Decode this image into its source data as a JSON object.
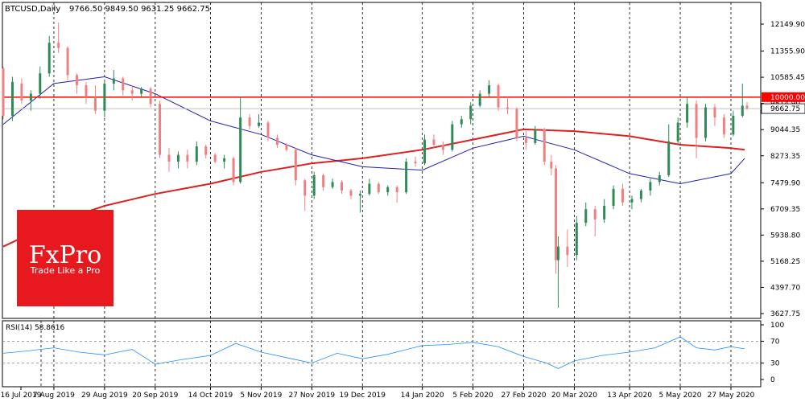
{
  "header": {
    "symbol_label": "BTCUSD,Daily",
    "ohlc_label": "9766.50 9849.50 9631.25 9662.75"
  },
  "logo": {
    "brand": "FxPro",
    "tagline": "Trade Like a Pro"
  },
  "rsi_label": "RSI(14) 58.8616",
  "colors": {
    "bull": "#2e8b57",
    "bear": "#f08080",
    "ma_long": "#e02020",
    "ma_short": "#2020b0",
    "resistance": "#ff0000",
    "rsi": "#1e90ff",
    "logo_bg": "#e8191e"
  },
  "chart_data": {
    "type": "candlestick",
    "title": "BTCUSD,Daily",
    "price_axis": {
      "ticks": [
        3627.75,
        4397.7,
        5168.25,
        5938.8,
        6709.35,
        7479.9,
        8273.35,
        9044.35,
        9814.9,
        10585.45,
        11355.9,
        12149.9
      ],
      "range": [
        3460,
        12600
      ],
      "tick_labels": [
        "3627.75",
        "4397.70",
        "5168.25",
        "5938.80",
        "6709.35",
        "7479.90",
        "8273.35",
        "9044.35",
        "9814.90",
        "10585.45",
        "11355.90",
        "12149.90"
      ]
    },
    "date_axis": {
      "labels": [
        "16 Jul 2019",
        "7 Aug 2019",
        "29 Aug 2019",
        "20 Sep 2019",
        "14 Oct 2019",
        "5 Nov 2019",
        "27 Nov 2019",
        "19 Dec 2019",
        "14 Jan 2020",
        "5 Feb 2020",
        "27 Feb 2020",
        "20 Mar 2020",
        "13 Apr 2020",
        "5 May 2020",
        "27 May 2020"
      ],
      "grid_at_labels": [
        "7 Aug 2019",
        "29 Aug 2019",
        "20 Sep 2019",
        "14 Oct 2019",
        "5 Nov 2019",
        "27 Nov 2019",
        "19 Dec 2019",
        "14 Jan 2020",
        "5 Feb 2020",
        "27 Feb 2020",
        "20 Mar 2020",
        "13 Apr 2020",
        "5 May 2020",
        "27 May 2020"
      ]
    },
    "resistance": {
      "value": 10000.0,
      "label": "10000.00"
    },
    "last_price": {
      "value": 9662.75,
      "label": "9662.75"
    },
    "ma_long_points": [
      [
        "2019-07-16",
        5600
      ],
      [
        "2019-08-07",
        6300
      ],
      [
        "2019-08-29",
        6800
      ],
      [
        "2019-09-20",
        7150
      ],
      [
        "2019-10-14",
        7450
      ],
      [
        "2019-11-05",
        7800
      ],
      [
        "2019-11-27",
        8050
      ],
      [
        "2019-12-19",
        8200
      ],
      [
        "2020-01-14",
        8450
      ],
      [
        "2020-02-05",
        8750
      ],
      [
        "2020-02-27",
        9050
      ],
      [
        "2020-03-20",
        9000
      ],
      [
        "2020-04-13",
        8850
      ],
      [
        "2020-05-05",
        8600
      ],
      [
        "2020-05-27",
        8500
      ],
      [
        "2020-06-02",
        8450
      ]
    ],
    "ma_short_points": [
      [
        "2019-07-16",
        9200
      ],
      [
        "2019-08-07",
        10400
      ],
      [
        "2019-08-29",
        10600
      ],
      [
        "2019-09-20",
        10100
      ],
      [
        "2019-10-14",
        9300
      ],
      [
        "2019-11-05",
        8900
      ],
      [
        "2019-11-27",
        8300
      ],
      [
        "2019-12-19",
        7950
      ],
      [
        "2020-01-14",
        7850
      ],
      [
        "2020-02-05",
        8500
      ],
      [
        "2020-02-27",
        8850
      ],
      [
        "2020-03-20",
        8450
      ],
      [
        "2020-04-13",
        7750
      ],
      [
        "2020-05-05",
        7450
      ],
      [
        "2020-05-27",
        7750
      ],
      [
        "2020-06-02",
        8200
      ]
    ],
    "rsi": {
      "range": [
        0,
        100
      ],
      "ticks": [
        0,
        30,
        70,
        100
      ],
      "levels": [
        30,
        70
      ],
      "values": [
        [
          "2019-07-16",
          48
        ],
        [
          "2019-07-26",
          52
        ],
        [
          "2019-08-07",
          58
        ],
        [
          "2019-08-18",
          50
        ],
        [
          "2019-08-29",
          45
        ],
        [
          "2019-09-10",
          55
        ],
        [
          "2019-09-20",
          28
        ],
        [
          "2019-10-01",
          36
        ],
        [
          "2019-10-14",
          44
        ],
        [
          "2019-10-25",
          66
        ],
        [
          "2019-11-05",
          50
        ],
        [
          "2019-11-16",
          40
        ],
        [
          "2019-11-27",
          30
        ],
        [
          "2019-12-08",
          48
        ],
        [
          "2019-12-19",
          38
        ],
        [
          "2019-12-30",
          46
        ],
        [
          "2020-01-14",
          62
        ],
        [
          "2020-01-25",
          64
        ],
        [
          "2020-02-05",
          68
        ],
        [
          "2020-02-16",
          60
        ],
        [
          "2020-02-27",
          42
        ],
        [
          "2020-03-08",
          30
        ],
        [
          "2020-03-13",
          20
        ],
        [
          "2020-03-20",
          34
        ],
        [
          "2020-04-01",
          44
        ],
        [
          "2020-04-13",
          50
        ],
        [
          "2020-04-24",
          58
        ],
        [
          "2020-05-05",
          78
        ],
        [
          "2020-05-12",
          58
        ],
        [
          "2020-05-20",
          54
        ],
        [
          "2020-05-27",
          60
        ],
        [
          "2020-06-02",
          56
        ]
      ]
    },
    "candles": [
      [
        "2019-07-16",
        10850,
        10900,
        9350,
        9450
      ],
      [
        "2019-07-20",
        9450,
        10600,
        9300,
        10450
      ],
      [
        "2019-07-24",
        10400,
        10550,
        9800,
        9900
      ],
      [
        "2019-07-28",
        9900,
        10200,
        9600,
        10100
      ],
      [
        "2019-08-01",
        10100,
        10900,
        9950,
        10700
      ],
      [
        "2019-08-05",
        10700,
        11800,
        10600,
        11600
      ],
      [
        "2019-08-09",
        11600,
        12200,
        11300,
        11450
      ],
      [
        "2019-08-13",
        11450,
        11500,
        10500,
        10650
      ],
      [
        "2019-08-17",
        10650,
        10700,
        10100,
        10350
      ],
      [
        "2019-08-21",
        10350,
        10450,
        9800,
        10000
      ],
      [
        "2019-08-25",
        10000,
        10350,
        9500,
        9600
      ],
      [
        "2019-08-29",
        9600,
        10500,
        9400,
        10400
      ],
      [
        "2019-09-02",
        10400,
        10800,
        10200,
        10550
      ],
      [
        "2019-09-06",
        10550,
        10600,
        10050,
        10200
      ],
      [
        "2019-09-10",
        10200,
        10350,
        9900,
        10100
      ],
      [
        "2019-09-14",
        10100,
        10300,
        10000,
        10250
      ],
      [
        "2019-09-18",
        10250,
        10300,
        9700,
        9800
      ],
      [
        "2019-09-22",
        9800,
        9900,
        8200,
        8300
      ],
      [
        "2019-09-26",
        8300,
        8500,
        7800,
        8100
      ],
      [
        "2019-09-30",
        8100,
        8400,
        7900,
        8300
      ],
      [
        "2019-10-04",
        8300,
        8450,
        7900,
        8100
      ],
      [
        "2019-10-08",
        8100,
        8700,
        8000,
        8550
      ],
      [
        "2019-10-12",
        8550,
        8600,
        8200,
        8300
      ],
      [
        "2019-10-16",
        8300,
        8350,
        8050,
        8100
      ],
      [
        "2019-10-20",
        8100,
        8300,
        7900,
        8200
      ],
      [
        "2019-10-24",
        8200,
        8250,
        7400,
        7500
      ],
      [
        "2019-10-27",
        7500,
        10000,
        7450,
        9400
      ],
      [
        "2019-10-31",
        9400,
        9500,
        9050,
        9150
      ],
      [
        "2019-11-04",
        9150,
        9500,
        9100,
        9250
      ],
      [
        "2019-11-08",
        9250,
        9300,
        8700,
        8800
      ],
      [
        "2019-11-12",
        8800,
        8900,
        8500,
        8600
      ],
      [
        "2019-11-16",
        8600,
        8650,
        8400,
        8450
      ],
      [
        "2019-11-20",
        8450,
        8500,
        7400,
        7550
      ],
      [
        "2019-11-24",
        7550,
        7600,
        6650,
        7100
      ],
      [
        "2019-11-28",
        7100,
        7800,
        7000,
        7700
      ],
      [
        "2019-12-02",
        7700,
        7750,
        7250,
        7350
      ],
      [
        "2019-12-06",
        7350,
        7600,
        7300,
        7500
      ],
      [
        "2019-12-10",
        7500,
        7550,
        7150,
        7250
      ],
      [
        "2019-12-14",
        7250,
        7300,
        7000,
        7100
      ],
      [
        "2019-12-18",
        7100,
        7250,
        6600,
        7150
      ],
      [
        "2019-12-22",
        7150,
        7600,
        7100,
        7450
      ],
      [
        "2019-12-26",
        7450,
        7500,
        7150,
        7200
      ],
      [
        "2019-12-30",
        7200,
        7400,
        7100,
        7350
      ],
      [
        "2020-01-03",
        7350,
        7400,
        6900,
        7200
      ],
      [
        "2020-01-07",
        7200,
        8200,
        7150,
        8100
      ],
      [
        "2020-01-11",
        8100,
        8250,
        7950,
        8050
      ],
      [
        "2020-01-15",
        8050,
        8900,
        8000,
        8750
      ],
      [
        "2020-01-19",
        8750,
        8900,
        8500,
        8600
      ],
      [
        "2020-01-23",
        8600,
        8700,
        8300,
        8450
      ],
      [
        "2020-01-27",
        8450,
        9300,
        8400,
        9200
      ],
      [
        "2020-01-31",
        9200,
        9450,
        9100,
        9350
      ],
      [
        "2020-02-04",
        9350,
        9850,
        9200,
        9750
      ],
      [
        "2020-02-08",
        9750,
        10200,
        9700,
        10100
      ],
      [
        "2020-02-12",
        10100,
        10500,
        10000,
        10350
      ],
      [
        "2020-02-16",
        10350,
        10400,
        9600,
        9700
      ],
      [
        "2020-02-20",
        9700,
        10000,
        9500,
        9650
      ],
      [
        "2020-02-24",
        9650,
        9700,
        8700,
        8800
      ],
      [
        "2020-02-28",
        8800,
        9000,
        8450,
        8650
      ],
      [
        "2020-03-03",
        8650,
        9150,
        8600,
        9050
      ],
      [
        "2020-03-07",
        9050,
        9100,
        8000,
        8100
      ],
      [
        "2020-03-10",
        8100,
        8300,
        7700,
        7900
      ],
      [
        "2020-03-12",
        7900,
        8000,
        4800,
        5200
      ],
      [
        "2020-03-13",
        5200,
        5900,
        3800,
        5600
      ],
      [
        "2020-03-17",
        5600,
        6100,
        5000,
        5350
      ],
      [
        "2020-03-21",
        5350,
        6500,
        5200,
        6300
      ],
      [
        "2020-03-25",
        6300,
        6900,
        6200,
        6700
      ],
      [
        "2020-03-29",
        6700,
        6800,
        5900,
        6400
      ],
      [
        "2020-04-02",
        6400,
        7000,
        6300,
        6800
      ],
      [
        "2020-04-06",
        6800,
        7400,
        6700,
        7300
      ],
      [
        "2020-04-10",
        7300,
        7450,
        6800,
        6900
      ],
      [
        "2020-04-14",
        6900,
        7100,
        6700,
        7000
      ],
      [
        "2020-04-18",
        7000,
        7300,
        6900,
        7250
      ],
      [
        "2020-04-22",
        7250,
        7600,
        7100,
        7500
      ],
      [
        "2020-04-26",
        7500,
        7800,
        7400,
        7700
      ],
      [
        "2020-04-30",
        7700,
        9200,
        7650,
        8700
      ],
      [
        "2020-05-04",
        8700,
        9400,
        8600,
        9250
      ],
      [
        "2020-05-08",
        9250,
        10000,
        9100,
        9800
      ],
      [
        "2020-05-12",
        9800,
        9900,
        8200,
        8800
      ],
      [
        "2020-05-16",
        8800,
        9800,
        8700,
        9700
      ],
      [
        "2020-05-20",
        9700,
        9800,
        9150,
        9400
      ],
      [
        "2020-05-24",
        9400,
        9500,
        8800,
        8900
      ],
      [
        "2020-05-28",
        8900,
        9600,
        8850,
        9450
      ],
      [
        "2020-06-01",
        9450,
        10400,
        9400,
        9750
      ],
      [
        "2020-06-03",
        9750,
        9850,
        9630,
        9663
      ]
    ]
  }
}
